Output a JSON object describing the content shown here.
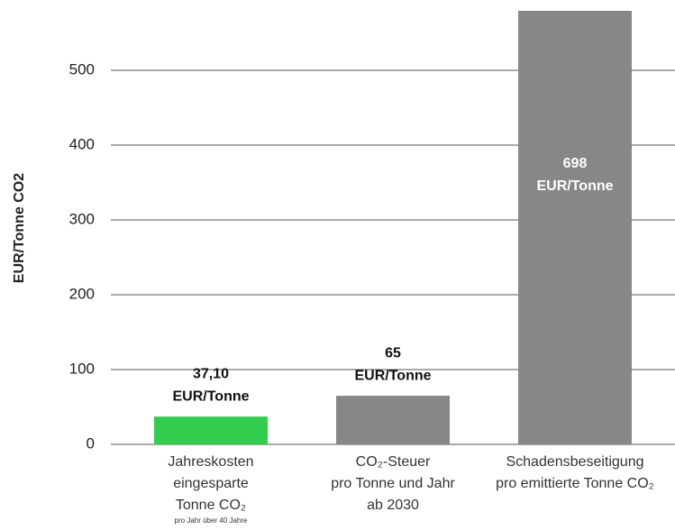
{
  "chart_data": {
    "type": "bar",
    "y_label": "EUR/Tonne CO2",
    "categories": [
      [
        "Jahreskosten",
        "eingesparte",
        "Tonne CO₂"
      ],
      [
        "CO₂-Steuer",
        "pro Tonne und Jahr",
        "ab 2030"
      ],
      [
        "Schadensbeseitigung",
        "pro emittierte Tonne CO₂"
      ]
    ],
    "category_note": "pro Jahr über 40 Jahre",
    "values": [
      37.1,
      65,
      698
    ],
    "value_labels": [
      "37,10",
      "65",
      "698"
    ],
    "value_unit": "EUR/Tonne",
    "colors": [
      "#33cc4f",
      "#878787",
      "#878787"
    ],
    "ylim": [
      0,
      594
    ],
    "yticks": [
      0,
      100,
      200,
      300,
      400,
      500
    ],
    "grid": true
  }
}
